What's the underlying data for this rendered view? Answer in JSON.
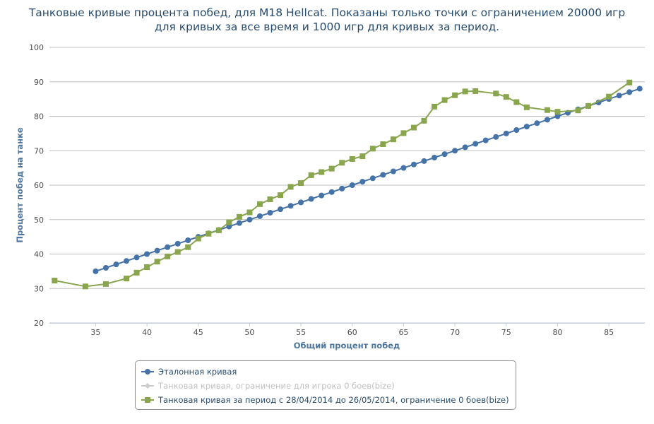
{
  "chart_data": {
    "type": "line",
    "title_line1": "Танковые кривые процента побед, для M18 Hellcat. Показаны только точки с ограничением 20000 игр",
    "title_line2": "для кривых за все время и 1000 игр для кривых за период.",
    "xlabel": "Общий процент побед",
    "ylabel": "Процент побед на танке",
    "xlim": [
      30.5,
      88.5
    ],
    "ylim": [
      20,
      100
    ],
    "x_ticks": [
      35,
      40,
      45,
      50,
      55,
      60,
      65,
      70,
      75,
      80,
      85
    ],
    "y_ticks": [
      20,
      30,
      40,
      50,
      60,
      70,
      80,
      90,
      100
    ],
    "grid": true,
    "legend_position": "bottom",
    "series": [
      {
        "name": "Эталонная кривая",
        "color": "#4572a7",
        "marker": "circle",
        "visible": true,
        "x": [
          35,
          36,
          37,
          38,
          39,
          40,
          41,
          42,
          43,
          44,
          45,
          46,
          47,
          48,
          49,
          50,
          51,
          52,
          53,
          54,
          55,
          56,
          57,
          58,
          59,
          60,
          61,
          62,
          63,
          64,
          65,
          66,
          67,
          68,
          69,
          70,
          71,
          72,
          73,
          74,
          75,
          76,
          77,
          78,
          79,
          80,
          81,
          82,
          83,
          84,
          85,
          86,
          87,
          88
        ],
        "y": [
          35,
          36,
          37,
          38,
          39,
          40,
          41,
          42,
          43,
          44,
          45,
          46,
          47,
          48,
          49,
          50,
          51,
          52,
          53,
          54,
          55,
          56,
          57,
          58,
          59,
          60,
          61,
          62,
          63,
          64,
          65,
          66,
          67,
          68,
          69,
          70,
          71,
          72,
          73,
          74,
          75,
          76,
          77,
          78,
          79,
          80,
          81,
          82,
          83,
          84,
          85,
          86,
          87,
          88
        ]
      },
      {
        "name": "Танковая кривая, ограничение для игрока 0 боев(bize)",
        "color": "#cccccc",
        "marker": "diamond",
        "visible": false,
        "x": [],
        "y": []
      },
      {
        "name": "Танковая кривая за период с 28/04/2014 до 26/05/2014, ограничение 0 боев(bize)",
        "color": "#89a54e",
        "marker": "square",
        "visible": true,
        "x": [
          31,
          34,
          36,
          38,
          39,
          40,
          41,
          42,
          43,
          44,
          45,
          46,
          47,
          48,
          49,
          50,
          51,
          52,
          53,
          54,
          55,
          56,
          57,
          58,
          59,
          60,
          61,
          62,
          63,
          64,
          65,
          66,
          67,
          68,
          69,
          70,
          71,
          72,
          74,
          75,
          76,
          77,
          79,
          80,
          82,
          83,
          85,
          87
        ],
        "y": [
          32.3,
          30.6,
          31.3,
          32.9,
          34.6,
          36.2,
          37.8,
          39.3,
          40.6,
          42,
          44.5,
          45.9,
          46.9,
          49.2,
          50.8,
          52.1,
          54.5,
          55.9,
          57.1,
          59.5,
          60.6,
          62.9,
          63.8,
          64.8,
          66.5,
          67.6,
          68.4,
          70.6,
          71.9,
          73.3,
          75.1,
          76.7,
          78.7,
          82.8,
          84.7,
          86.1,
          87.2,
          87.3,
          86.6,
          85.6,
          84.1,
          82.6,
          81.8,
          81.3,
          81.7,
          83,
          85.7,
          89.8
        ]
      }
    ]
  }
}
